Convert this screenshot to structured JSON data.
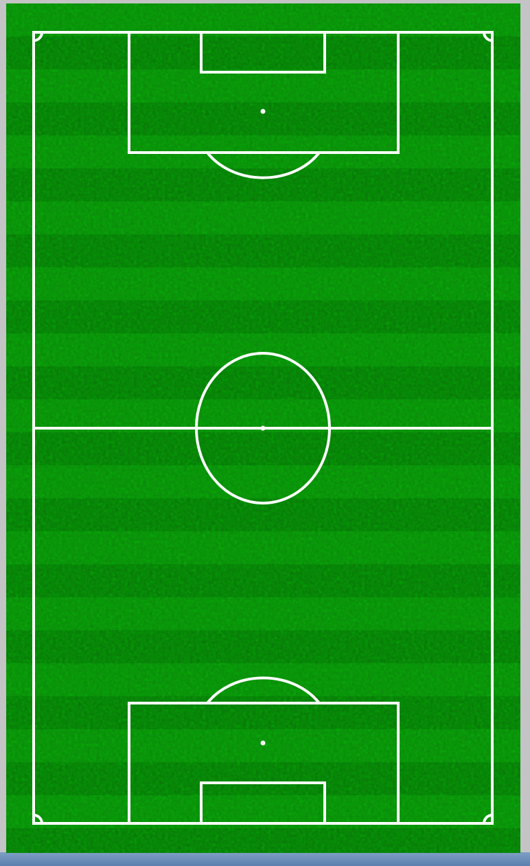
{
  "pitch": {
    "orientation": "vertical",
    "surface": "grass",
    "colors": {
      "grass_dark": "#0b7a0b",
      "grass_light": "#13a513",
      "grass_shadow": "#065a06",
      "line": "#ffffff",
      "background": "#c4c4c6",
      "frame_bottom": "#6b8fbb"
    },
    "markings": [
      "touchline",
      "halfway-line",
      "center-circle",
      "center-spot",
      "penalty-area-top",
      "goal-area-top",
      "penalty-spot-top",
      "penalty-arc-top",
      "penalty-area-bottom",
      "goal-area-bottom",
      "penalty-spot-bottom",
      "penalty-arc-bottom",
      "corner-arcs"
    ]
  }
}
